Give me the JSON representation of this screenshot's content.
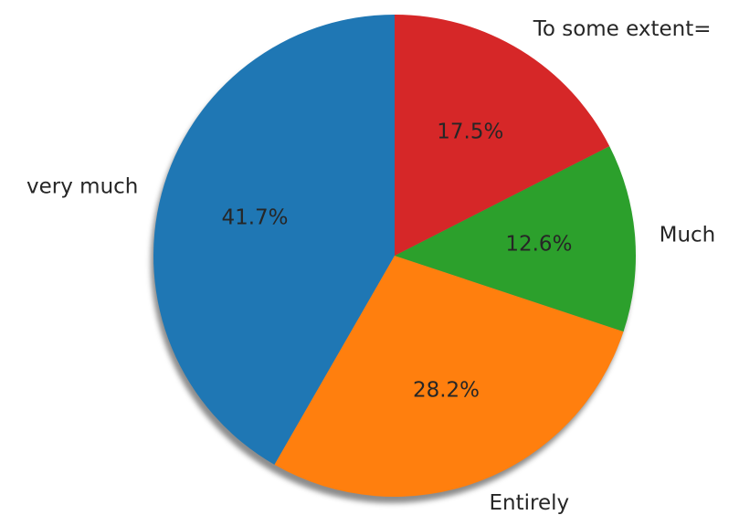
{
  "chart_data": {
    "type": "pie",
    "categories": [
      "very much",
      "Entirely",
      "Much",
      "To some extent="
    ],
    "values": [
      41.7,
      28.2,
      12.6,
      17.5
    ],
    "percent_labels": [
      "41.7%",
      "28.2%",
      "12.6%",
      "17.5%"
    ],
    "colors": [
      "#1f77b4",
      "#ff7f0e",
      "#2ca02c",
      "#d62728"
    ],
    "start_angle_deg": 90,
    "direction": "counterclockwise",
    "shadow": true,
    "legend": "none"
  }
}
